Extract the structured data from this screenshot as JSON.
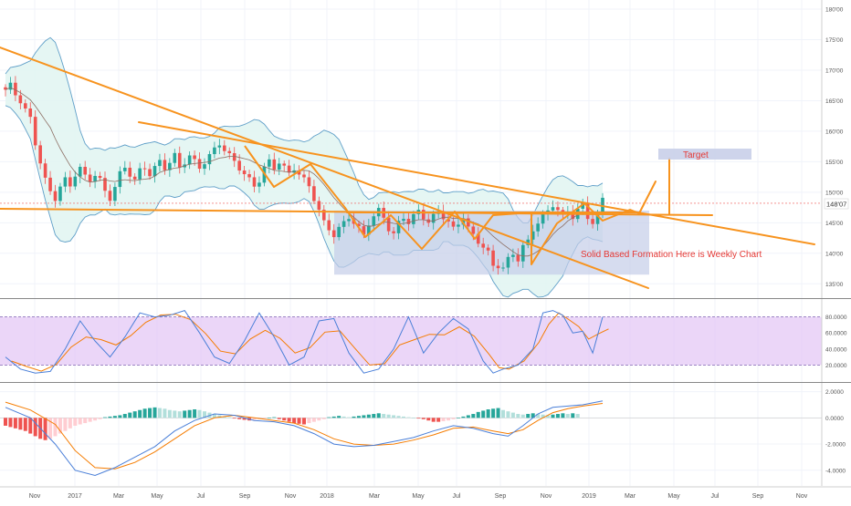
{
  "chart_data": [
    {
      "type": "candlestick",
      "panel": "price",
      "y_ticks": [
        "135'00",
        "140'00",
        "145'00",
        "150'00",
        "155'00",
        "160'00",
        "165'00",
        "170'00",
        "175'00",
        "180'00"
      ],
      "y_tick_values": [
        135,
        140,
        145,
        150,
        155,
        160,
        165,
        170,
        175,
        180
      ],
      "ylim": [
        132.8,
        181.5
      ],
      "last_price_label": "148'07",
      "last_price": 148.2,
      "x_ticks": [
        "Nov",
        "2017",
        "Mar",
        "May",
        "Jul",
        "Sep",
        "Nov",
        "2018",
        "Mar",
        "May",
        "Jul",
        "Sep",
        "Nov",
        "2019",
        "Mar",
        "May",
        "Jul",
        "Sep",
        "Nov"
      ],
      "close_path": [
        [
          0,
          166.8
        ],
        [
          1,
          167.5
        ],
        [
          2,
          166
        ],
        [
          3,
          165
        ],
        [
          4,
          163.5
        ],
        [
          5,
          162
        ],
        [
          6,
          158
        ],
        [
          7,
          155
        ],
        [
          8,
          152
        ],
        [
          9,
          150
        ],
        [
          10,
          149
        ],
        [
          11,
          151
        ],
        [
          12,
          152
        ],
        [
          13,
          151
        ],
        [
          14,
          153
        ],
        [
          15,
          154
        ],
        [
          16,
          152.5
        ],
        [
          17,
          152
        ],
        [
          18,
          153
        ],
        [
          19,
          152
        ],
        [
          20,
          150
        ],
        [
          21,
          149
        ],
        [
          22,
          151
        ],
        [
          23,
          153
        ],
        [
          24,
          154
        ],
        [
          25,
          153
        ],
        [
          26,
          152
        ],
        [
          27,
          153.5
        ],
        [
          28,
          154
        ],
        [
          29,
          153
        ],
        [
          30,
          154
        ],
        [
          31,
          155
        ],
        [
          32,
          154
        ],
        [
          33,
          155
        ],
        [
          34,
          156
        ],
        [
          35,
          154
        ],
        [
          36,
          155
        ],
        [
          37,
          156
        ],
        [
          38,
          155
        ],
        [
          39,
          154
        ],
        [
          40,
          155
        ],
        [
          41,
          156
        ],
        [
          42,
          157
        ],
        [
          43,
          158
        ],
        [
          44,
          157
        ],
        [
          45,
          156
        ],
        [
          46,
          155
        ],
        [
          47,
          154
        ],
        [
          48,
          153
        ],
        [
          49,
          152
        ],
        [
          50,
          151
        ],
        [
          51,
          152
        ],
        [
          52,
          154
        ],
        [
          53,
          155
        ],
        [
          54,
          154
        ],
        [
          55,
          155
        ],
        [
          56,
          154
        ],
        [
          57,
          153
        ],
        [
          58,
          154
        ],
        [
          59,
          153
        ],
        [
          60,
          152
        ],
        [
          61,
          151
        ],
        [
          62,
          149
        ],
        [
          63,
          147
        ],
        [
          64,
          145
        ],
        [
          65,
          144
        ],
        [
          66,
          143
        ],
        [
          67,
          144
        ],
        [
          68,
          145
        ],
        [
          69,
          146
        ],
        [
          70,
          145
        ],
        [
          71,
          144
        ],
        [
          72,
          143
        ],
        [
          73,
          145
        ],
        [
          74,
          146
        ],
        [
          75,
          147
        ],
        [
          76,
          146
        ],
        [
          77,
          144
        ],
        [
          78,
          143
        ],
        [
          79,
          145
        ],
        [
          80,
          146
        ],
        [
          81,
          145
        ],
        [
          82,
          146
        ],
        [
          83,
          147
        ],
        [
          84,
          146
        ],
        [
          85,
          145
        ],
        [
          86,
          146
        ],
        [
          87,
          147
        ],
        [
          88,
          146
        ],
        [
          89,
          145
        ],
        [
          90,
          144
        ],
        [
          91,
          145
        ],
        [
          92,
          146
        ],
        [
          93,
          144
        ],
        [
          94,
          143
        ],
        [
          95,
          142
        ],
        [
          96,
          141
        ],
        [
          97,
          140
        ],
        [
          98,
          138
        ],
        [
          99,
          138
        ],
        [
          100,
          137.5
        ],
        [
          101,
          139
        ],
        [
          102,
          140
        ],
        [
          103,
          139
        ],
        [
          104,
          141
        ],
        [
          105,
          142
        ],
        [
          106,
          144
        ],
        [
          107,
          145
        ],
        [
          108,
          146
        ],
        [
          109,
          147
        ],
        [
          110,
          148
        ],
        [
          111,
          147
        ],
        [
          112,
          146
        ],
        [
          113,
          147
        ],
        [
          114,
          146
        ],
        [
          115,
          147
        ],
        [
          116,
          148
        ],
        [
          117,
          146
        ],
        [
          118,
          145
        ],
        [
          119,
          146
        ],
        [
          120,
          149
        ]
      ],
      "annotations": [
        {
          "text": "Target",
          "color": "#e53935"
        },
        {
          "text": "Solid Based Formation Here is Weekly Chart",
          "color": "#e53935"
        }
      ],
      "colors": {
        "up": "#26a69a",
        "down": "#ef5350",
        "trendline": "#f7931e",
        "bollinger_fill": "#e0f4f1",
        "bollinger_line": "#5f9fc8",
        "box": "#c5cde8"
      }
    },
    {
      "type": "line",
      "panel": "stochastic",
      "y_ticks": [
        "80.0000",
        "60.0000",
        "40.0000",
        "20.0000"
      ],
      "y_tick_values": [
        80,
        60,
        40,
        20
      ],
      "ylim": [
        0,
        100
      ],
      "k_series": [
        [
          0,
          30
        ],
        [
          3,
          15
        ],
        [
          6,
          10
        ],
        [
          9,
          12
        ],
        [
          12,
          40
        ],
        [
          15,
          75
        ],
        [
          18,
          50
        ],
        [
          21,
          30
        ],
        [
          24,
          55
        ],
        [
          27,
          85
        ],
        [
          30,
          80
        ],
        [
          33,
          82
        ],
        [
          36,
          88
        ],
        [
          39,
          60
        ],
        [
          42,
          30
        ],
        [
          45,
          22
        ],
        [
          48,
          50
        ],
        [
          51,
          85
        ],
        [
          54,
          55
        ],
        [
          57,
          20
        ],
        [
          60,
          30
        ],
        [
          63,
          75
        ],
        [
          66,
          78
        ],
        [
          69,
          35
        ],
        [
          72,
          10
        ],
        [
          75,
          15
        ],
        [
          78,
          40
        ],
        [
          81,
          80
        ],
        [
          84,
          35
        ],
        [
          87,
          60
        ],
        [
          90,
          78
        ],
        [
          93,
          65
        ],
        [
          96,
          25
        ],
        [
          98,
          10
        ],
        [
          100,
          15
        ],
        [
          103,
          20
        ],
        [
          106,
          40
        ],
        [
          108,
          85
        ],
        [
          110,
          88
        ],
        [
          112,
          82
        ],
        [
          114,
          60
        ],
        [
          116,
          62
        ],
        [
          118,
          35
        ],
        [
          120,
          80
        ]
      ],
      "colors": {
        "k": "#4a7fd8",
        "d": "#f57c00",
        "band": "#e4c8f5",
        "band_line": "#7b5cb0"
      }
    },
    {
      "type": "bar",
      "panel": "macd",
      "y_ticks": [
        "2.0000",
        "0.0000",
        "-2.0000",
        "-4.0000"
      ],
      "y_tick_values": [
        2,
        0,
        -2,
        -4
      ],
      "ylim": [
        -5.2,
        2.6
      ],
      "histogram": [
        -0.6,
        -0.7,
        -0.8,
        -0.9,
        -1.0,
        -1.2,
        -1.4,
        -1.6,
        -1.7,
        -1.6,
        -1.4,
        -1.2,
        -1.0,
        -0.8,
        -0.6,
        -0.5,
        -0.4,
        -0.3,
        -0.2,
        -0.1,
        0.05,
        0.1,
        0.15,
        0.2,
        0.3,
        0.4,
        0.5,
        0.6,
        0.7,
        0.75,
        0.8,
        0.75,
        0.7,
        0.6,
        0.55,
        0.5,
        0.55,
        0.6,
        0.65,
        0.6,
        0.5,
        0.4,
        0.3,
        0.2,
        0.1,
        0.05,
        -0.05,
        -0.1,
        -0.15,
        -0.2,
        -0.15,
        -0.1,
        -0.05,
        0.0,
        0.05,
        -0.1,
        -0.2,
        -0.3,
        -0.4,
        -0.45,
        -0.5,
        -0.4,
        -0.3,
        -0.2,
        -0.1,
        0.05,
        0.1,
        0.15,
        0.1,
        0.05,
        0.1,
        0.15,
        0.2,
        0.25,
        0.3,
        0.35,
        0.3,
        0.25,
        0.2,
        0.15,
        0.1,
        0.05,
        0.0,
        -0.05,
        -0.1,
        -0.2,
        -0.3,
        -0.3,
        -0.25,
        -0.2,
        -0.1,
        0.0,
        0.1,
        0.2,
        0.3,
        0.45,
        0.55,
        0.65,
        0.7,
        0.75,
        0.6,
        0.5,
        0.4,
        0.3,
        0.25,
        0.3,
        0.35,
        0.3,
        0.25,
        0.2,
        0.25,
        0.3,
        0.35,
        0.3,
        0.35,
        0.3
      ],
      "macd_series": [
        [
          0,
          0.8
        ],
        [
          5,
          0.0
        ],
        [
          10,
          -2.0
        ],
        [
          14,
          -4.0
        ],
        [
          18,
          -4.4
        ],
        [
          22,
          -3.8
        ],
        [
          26,
          -3.0
        ],
        [
          30,
          -2.2
        ],
        [
          34,
          -1.0
        ],
        [
          38,
          -0.2
        ],
        [
          42,
          0.3
        ],
        [
          46,
          0.2
        ],
        [
          50,
          -0.2
        ],
        [
          54,
          -0.3
        ],
        [
          58,
          -0.6
        ],
        [
          62,
          -1.2
        ],
        [
          66,
          -2.0
        ],
        [
          70,
          -2.2
        ],
        [
          74,
          -2.1
        ],
        [
          78,
          -1.8
        ],
        [
          82,
          -1.5
        ],
        [
          86,
          -1.0
        ],
        [
          90,
          -0.6
        ],
        [
          94,
          -0.8
        ],
        [
          98,
          -1.2
        ],
        [
          101,
          -1.4
        ],
        [
          104,
          -0.6
        ],
        [
          107,
          0.3
        ],
        [
          110,
          0.8
        ],
        [
          113,
          0.9
        ],
        [
          116,
          1.0
        ],
        [
          120,
          1.3
        ]
      ],
      "signal_series": [
        [
          0,
          1.2
        ],
        [
          5,
          0.6
        ],
        [
          10,
          -0.5
        ],
        [
          14,
          -2.5
        ],
        [
          18,
          -3.8
        ],
        [
          22,
          -3.9
        ],
        [
          26,
          -3.4
        ],
        [
          30,
          -2.6
        ],
        [
          34,
          -1.6
        ],
        [
          38,
          -0.6
        ],
        [
          42,
          0.0
        ],
        [
          46,
          0.2
        ],
        [
          50,
          0.0
        ],
        [
          54,
          -0.2
        ],
        [
          58,
          -0.4
        ],
        [
          62,
          -0.9
        ],
        [
          66,
          -1.6
        ],
        [
          70,
          -2.0
        ],
        [
          74,
          -2.1
        ],
        [
          78,
          -2.0
        ],
        [
          82,
          -1.7
        ],
        [
          86,
          -1.3
        ],
        [
          90,
          -0.8
        ],
        [
          94,
          -0.7
        ],
        [
          98,
          -1.0
        ],
        [
          101,
          -1.2
        ],
        [
          104,
          -0.9
        ],
        [
          107,
          -0.2
        ],
        [
          110,
          0.4
        ],
        [
          113,
          0.7
        ],
        [
          116,
          0.9
        ],
        [
          120,
          1.1
        ]
      ],
      "colors": {
        "hist_up_strong": "#26a69a",
        "hist_up_weak": "#b2dfdb",
        "hist_down_strong": "#ef5350",
        "hist_down_weak": "#ffcdd2",
        "macd": "#4a7fd8",
        "signal": "#f57c00"
      }
    }
  ]
}
